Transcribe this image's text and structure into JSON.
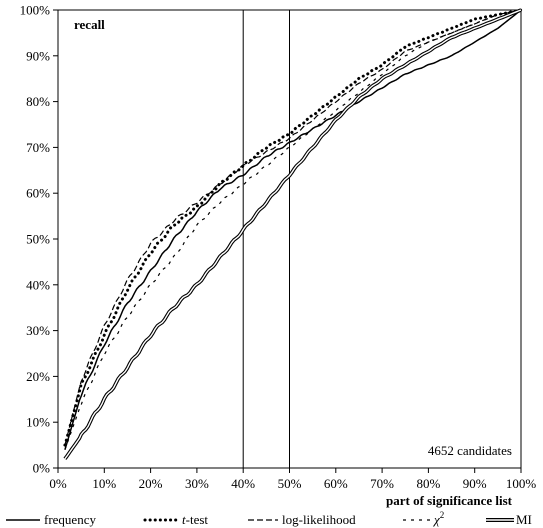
{
  "chart_data": {
    "type": "line",
    "title": "recall",
    "xlabel": "part of significance list",
    "ylabel": "",
    "annotation": "4652 candidates",
    "xlim": [
      0,
      100
    ],
    "ylim": [
      0,
      100
    ],
    "x_ticks": [
      "0%",
      "10%",
      "20%",
      "30%",
      "40%",
      "50%",
      "60%",
      "70%",
      "80%",
      "90%",
      "100%"
    ],
    "y_ticks": [
      "0%",
      "10%",
      "20%",
      "30%",
      "40%",
      "50%",
      "60%",
      "70%",
      "80%",
      "90%",
      "100%"
    ],
    "reference_lines_x": [
      40,
      50
    ],
    "legend_position": "bottom",
    "grid": false,
    "series": [
      {
        "name": "frequency",
        "style": "solid",
        "x": [
          1.5,
          5,
          10,
          15,
          20,
          25,
          30,
          35,
          40,
          45,
          50,
          55,
          60,
          65,
          70,
          75,
          80,
          85,
          90,
          95,
          100
        ],
        "values": [
          4,
          16,
          27,
          36,
          43,
          50,
          56,
          61,
          64,
          68,
          71,
          74,
          77,
          80,
          83,
          86,
          88,
          90,
          93,
          96,
          100
        ]
      },
      {
        "name": "t-test",
        "style": "dotted",
        "x": [
          1.5,
          5,
          10,
          15,
          20,
          25,
          30,
          35,
          40,
          45,
          50,
          55,
          60,
          65,
          70,
          75,
          80,
          85,
          90,
          95,
          100
        ],
        "values": [
          5,
          18,
          29,
          39,
          47,
          53,
          57,
          62,
          66,
          70,
          73,
          77,
          81,
          85,
          88,
          92,
          94,
          96,
          98,
          99,
          100
        ]
      },
      {
        "name": "log-likelihood",
        "style": "dashed",
        "x": [
          1.5,
          5,
          10,
          15,
          20,
          25,
          30,
          35,
          40,
          45,
          50,
          55,
          60,
          65,
          70,
          75,
          80,
          85,
          90,
          95,
          100
        ],
        "values": [
          5,
          19,
          31,
          41,
          49,
          54,
          58,
          62,
          66,
          69,
          72,
          76,
          80,
          84,
          87,
          91,
          93,
          95,
          97,
          99,
          100
        ]
      },
      {
        "name": "χ²",
        "style": "sparse-dashed",
        "x": [
          1.5,
          5,
          10,
          15,
          20,
          25,
          30,
          35,
          40,
          45,
          50,
          55,
          60,
          65,
          70,
          75,
          80,
          85,
          90,
          95,
          100
        ],
        "values": [
          4,
          14,
          25,
          33,
          40,
          46,
          53,
          58,
          62,
          66,
          70,
          74,
          78,
          82,
          86,
          90,
          93,
          95,
          97,
          99,
          100
        ]
      },
      {
        "name": "MI",
        "style": "double",
        "x": [
          1.5,
          5,
          10,
          15,
          20,
          25,
          30,
          35,
          40,
          45,
          50,
          55,
          60,
          65,
          70,
          75,
          80,
          85,
          90,
          95,
          100
        ],
        "values": [
          2,
          7,
          15,
          22,
          29,
          35,
          40,
          46,
          52,
          58,
          64,
          70,
          76,
          81,
          85,
          88,
          91,
          94,
          96,
          98,
          100
        ]
      }
    ]
  },
  "legend_labels": {
    "frequency": "frequency",
    "t_test_italic": "t",
    "t_test_rest": "-test",
    "log_likelihood": "log-likelihood",
    "chi_symbol": "χ",
    "chi_superscript": "2",
    "mi": "MI"
  }
}
